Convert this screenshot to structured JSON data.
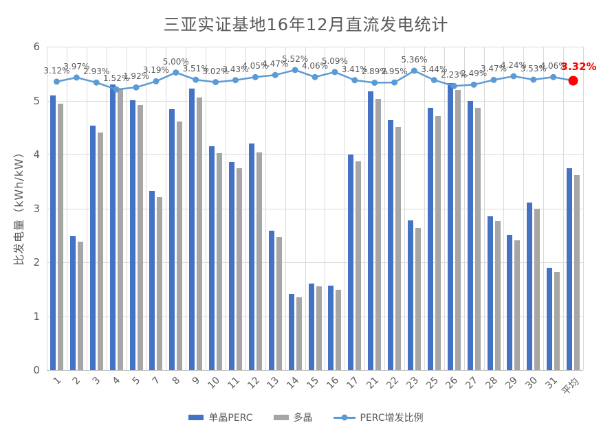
{
  "title": "三亚实证基地16年12月直流发电统计",
  "colors": {
    "bar_mono": "#4472C4",
    "bar_multi": "#A6A6A6",
    "line": "#5B9BD5",
    "highlight": "#FF0000",
    "grid": "#D9D9D9",
    "axis": "#BFBFBF",
    "text": "#595959"
  },
  "chart_data": {
    "type": "bar",
    "subtype": "grouped-bars-with-line-overlay",
    "title": "三亚实证基地16年12月直流发电统计",
    "ylabel": "比发电量（kWh/kW）",
    "xlabel": "",
    "ylim": [
      0,
      6
    ],
    "yticks": [
      0,
      1,
      2,
      3,
      4,
      5,
      6
    ],
    "grid": true,
    "legend_position": "bottom",
    "secondary_axis_visible": false,
    "categories": [
      "1",
      "2",
      "3",
      "4",
      "5",
      "7",
      "8",
      "9",
      "10",
      "11",
      "12",
      "13",
      "14",
      "15",
      "16",
      "17",
      "21",
      "22",
      "23",
      "25",
      "26",
      "27",
      "28",
      "29",
      "30",
      "31",
      "平均"
    ],
    "series": [
      {
        "name": "单晶PERC",
        "type": "bar",
        "values": [
          5.09,
          2.48,
          4.54,
          5.3,
          5.01,
          3.33,
          4.84,
          5.22,
          4.15,
          3.86,
          4.21,
          2.58,
          1.42,
          1.61,
          1.57,
          4.0,
          5.17,
          4.64,
          2.78,
          4.87,
          5.32,
          4.99,
          2.85,
          2.51,
          3.11,
          1.9,
          3.75
        ]
      },
      {
        "name": "多晶",
        "type": "bar",
        "values": [
          4.94,
          2.38,
          4.41,
          5.22,
          4.92,
          3.21,
          4.61,
          5.06,
          4.02,
          3.74,
          4.04,
          2.47,
          1.35,
          1.55,
          1.49,
          3.87,
          5.03,
          4.51,
          2.64,
          4.71,
          5.2,
          4.87,
          2.76,
          2.41,
          3.0,
          1.82,
          3.62
        ]
      },
      {
        "name": "PERC增发比例",
        "type": "line",
        "unit": "%",
        "values": [
          3.12,
          3.97,
          2.93,
          1.52,
          1.92,
          3.19,
          5.0,
          3.51,
          3.02,
          3.43,
          4.05,
          4.47,
          5.52,
          4.06,
          5.09,
          3.41,
          2.89,
          2.95,
          5.36,
          3.44,
          2.23,
          2.49,
          3.47,
          4.24,
          3.53,
          4.06,
          3.32
        ],
        "labels": [
          "3.12%",
          "3.97%",
          "2.93%",
          "1.52%",
          "1.92%",
          "3.19%",
          "5.00%",
          "3.51%",
          "3.02%",
          "3.43%",
          "4.05%",
          "4.47%",
          "5.52%",
          "4.06%",
          "5.09%",
          "3.41%",
          "2.89%",
          "2.95%",
          "5.36%",
          "3.44%",
          "2.23%",
          "2.49%",
          "3.47%",
          "4.24%",
          "3.53%",
          "4.06%",
          "3.32%"
        ],
        "last_point_highlighted": true
      }
    ]
  }
}
